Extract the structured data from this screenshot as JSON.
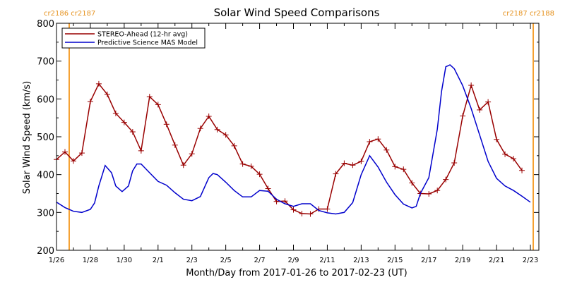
{
  "chart_data": {
    "type": "line",
    "title": "Solar Wind Speed Comparisons",
    "xlabel": "Month/Day from 2017-01-26 to 2017-02-23 (UT)",
    "ylabel": "Solar Wind Speed (km/s)",
    "xlim": [
      "2017-01-26",
      "2017-02-23 12:00"
    ],
    "ylim": [
      200,
      800
    ],
    "x_ticks": [
      "1/26",
      "1/28",
      "1/30",
      "2/1",
      "2/3",
      "2/5",
      "2/7",
      "2/9",
      "2/11",
      "2/13",
      "2/15",
      "2/17",
      "2/19",
      "2/21",
      "2/23"
    ],
    "y_ticks": [
      200,
      300,
      400,
      500,
      600,
      700,
      800
    ],
    "legend_position": "top-left",
    "carrington_markers": [
      {
        "date": "2017-01-26 18:00",
        "labels": [
          "cr2186",
          "cr2187"
        ],
        "side": "left"
      },
      {
        "date": "2017-02-23 04:00",
        "labels": [
          "cr2187",
          "cr2188"
        ],
        "side": "right"
      }
    ],
    "series": [
      {
        "name": "STEREO-Ahead (12-hr avg)",
        "color": "#990000",
        "marker": "plus",
        "points": [
          [
            "2017-01-26 00:00",
            440
          ],
          [
            "2017-01-26 12:00",
            460
          ],
          [
            "2017-01-27 00:00",
            436
          ],
          [
            "2017-01-27 12:00",
            457
          ],
          [
            "2017-01-28 00:00",
            593
          ],
          [
            "2017-01-28 12:00",
            640
          ],
          [
            "2017-01-29 00:00",
            612
          ],
          [
            "2017-01-29 12:00",
            562
          ],
          [
            "2017-01-30 00:00",
            538
          ],
          [
            "2017-01-30 12:00",
            513
          ],
          [
            "2017-01-31 00:00",
            463
          ],
          [
            "2017-01-31 12:00",
            606
          ],
          [
            "2017-02-01 00:00",
            585
          ],
          [
            "2017-02-01 12:00",
            533
          ],
          [
            "2017-02-02 00:00",
            478
          ],
          [
            "2017-02-02 12:00",
            425
          ],
          [
            "2017-02-03 00:00",
            455
          ],
          [
            "2017-02-03 12:00",
            522
          ],
          [
            "2017-02-04 00:00",
            554
          ],
          [
            "2017-02-04 12:00",
            519
          ],
          [
            "2017-02-05 00:00",
            505
          ],
          [
            "2017-02-05 12:00",
            476
          ],
          [
            "2017-02-06 00:00",
            428
          ],
          [
            "2017-02-06 12:00",
            422
          ],
          [
            "2017-02-07 00:00",
            401
          ],
          [
            "2017-02-07 12:00",
            363
          ],
          [
            "2017-02-08 00:00",
            329
          ],
          [
            "2017-02-08 12:00",
            330
          ],
          [
            "2017-02-09 00:00",
            307
          ],
          [
            "2017-02-09 12:00",
            297
          ],
          [
            "2017-02-10 00:00",
            296
          ],
          [
            "2017-02-10 12:00",
            309
          ],
          [
            "2017-02-11 00:00",
            309
          ],
          [
            "2017-02-11 12:00",
            402
          ],
          [
            "2017-02-12 00:00",
            430
          ],
          [
            "2017-02-12 12:00",
            425
          ],
          [
            "2017-02-13 00:00",
            435
          ],
          [
            "2017-02-13 12:00",
            487
          ],
          [
            "2017-02-14 00:00",
            494
          ],
          [
            "2017-02-14 12:00",
            465
          ],
          [
            "2017-02-15 00:00",
            421
          ],
          [
            "2017-02-15 12:00",
            414
          ],
          [
            "2017-02-16 00:00",
            378
          ],
          [
            "2017-02-16 12:00",
            350
          ],
          [
            "2017-02-17 00:00",
            349
          ],
          [
            "2017-02-17 12:00",
            358
          ],
          [
            "2017-02-18 00:00",
            387
          ],
          [
            "2017-02-18 12:00",
            431
          ],
          [
            "2017-02-19 00:00",
            555
          ],
          [
            "2017-02-19 12:00",
            636
          ],
          [
            "2017-02-20 00:00",
            571
          ],
          [
            "2017-02-20 12:00",
            592
          ],
          [
            "2017-02-21 00:00",
            493
          ],
          [
            "2017-02-21 12:00",
            454
          ],
          [
            "2017-02-22 00:00",
            442
          ],
          [
            "2017-02-22 12:00",
            411
          ]
        ]
      },
      {
        "name": "Predictive Science MAS Model",
        "color": "#0000cc",
        "marker": "none",
        "points": [
          [
            "2017-01-26 00:00",
            327
          ],
          [
            "2017-01-26 12:00",
            313
          ],
          [
            "2017-01-27 00:00",
            303
          ],
          [
            "2017-01-27 12:00",
            300
          ],
          [
            "2017-01-28 00:00",
            308
          ],
          [
            "2017-01-28 06:00",
            325
          ],
          [
            "2017-01-28 12:00",
            370
          ],
          [
            "2017-01-28 21:00",
            424
          ],
          [
            "2017-01-29 06:00",
            405
          ],
          [
            "2017-01-29 12:00",
            370
          ],
          [
            "2017-01-29 21:00",
            355
          ],
          [
            "2017-01-30 06:00",
            370
          ],
          [
            "2017-01-30 12:00",
            410
          ],
          [
            "2017-01-30 18:00",
            428
          ],
          [
            "2017-01-31 00:00",
            428
          ],
          [
            "2017-01-31 12:00",
            405
          ],
          [
            "2017-02-01 00:00",
            382
          ],
          [
            "2017-02-01 12:00",
            372
          ],
          [
            "2017-02-02 00:00",
            352
          ],
          [
            "2017-02-02 12:00",
            335
          ],
          [
            "2017-02-03 00:00",
            331
          ],
          [
            "2017-02-03 12:00",
            342
          ],
          [
            "2017-02-04 00:00",
            392
          ],
          [
            "2017-02-04 06:00",
            403
          ],
          [
            "2017-02-04 12:00",
            400
          ],
          [
            "2017-02-05 00:00",
            380
          ],
          [
            "2017-02-05 12:00",
            358
          ],
          [
            "2017-02-06 00:00",
            341
          ],
          [
            "2017-02-06 12:00",
            341
          ],
          [
            "2017-02-07 00:00",
            358
          ],
          [
            "2017-02-07 12:00",
            356
          ],
          [
            "2017-02-08 00:00",
            335
          ],
          [
            "2017-02-08 12:00",
            323
          ],
          [
            "2017-02-09 00:00",
            316
          ],
          [
            "2017-02-09 12:00",
            323
          ],
          [
            "2017-02-10 00:00",
            323
          ],
          [
            "2017-02-10 12:00",
            305
          ],
          [
            "2017-02-11 00:00",
            299
          ],
          [
            "2017-02-11 12:00",
            296
          ],
          [
            "2017-02-12 00:00",
            300
          ],
          [
            "2017-02-12 12:00",
            326
          ],
          [
            "2017-02-13 00:00",
            400
          ],
          [
            "2017-02-13 12:00",
            450
          ],
          [
            "2017-02-14 00:00",
            420
          ],
          [
            "2017-02-14 12:00",
            380
          ],
          [
            "2017-02-15 00:00",
            347
          ],
          [
            "2017-02-15 12:00",
            322
          ],
          [
            "2017-02-16 00:00",
            312
          ],
          [
            "2017-02-16 06:00",
            316
          ],
          [
            "2017-02-16 12:00",
            350
          ],
          [
            "2017-02-17 00:00",
            392
          ],
          [
            "2017-02-17 12:00",
            520
          ],
          [
            "2017-02-17 18:00",
            620
          ],
          [
            "2017-02-18 00:00",
            685
          ],
          [
            "2017-02-18 06:00",
            690
          ],
          [
            "2017-02-18 12:00",
            680
          ],
          [
            "2017-02-19 00:00",
            635
          ],
          [
            "2017-02-19 12:00",
            575
          ],
          [
            "2017-02-20 00:00",
            505
          ],
          [
            "2017-02-20 12:00",
            435
          ],
          [
            "2017-02-21 00:00",
            390
          ],
          [
            "2017-02-21 12:00",
            370
          ],
          [
            "2017-02-22 00:00",
            358
          ],
          [
            "2017-02-22 12:00",
            343
          ],
          [
            "2017-02-23 00:00",
            327
          ]
        ]
      }
    ]
  }
}
